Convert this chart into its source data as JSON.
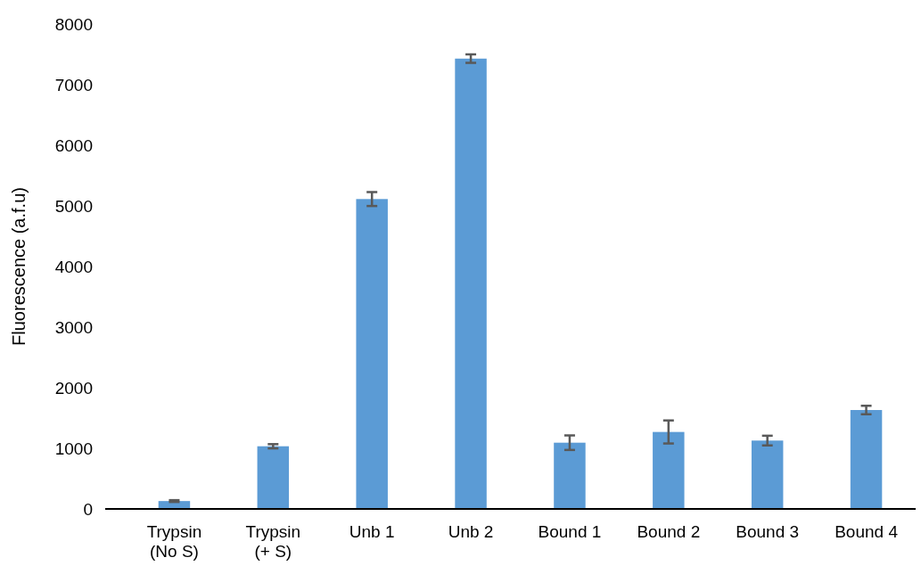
{
  "chart_data": {
    "type": "bar",
    "ylabel": "Fluorescence (a.f.u)",
    "categories": [
      "Trypsin (No S)",
      "Trypsin (+ S)",
      "Unb 1",
      "Unb 2",
      "Bound 1",
      "Bound 2",
      "Bound 3",
      "Bound 4"
    ],
    "values": [
      130,
      1034,
      5113,
      7430,
      1093,
      1270,
      1128,
      1632
    ],
    "errors": [
      15,
      35,
      115,
      70,
      120,
      190,
      80,
      70
    ],
    "color": "#5b9bd5",
    "ylim": [
      0,
      8000
    ],
    "yticks": [
      0,
      1000,
      2000,
      3000,
      4000,
      5000,
      6000,
      7000,
      8000
    ],
    "grid": false
  }
}
